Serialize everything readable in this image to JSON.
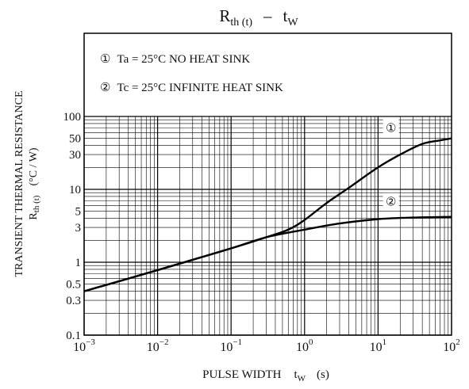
{
  "chart_data": {
    "type": "line",
    "title": {
      "main": "R",
      "sub": "th (t)",
      "dash": "–",
      "t": "t",
      "w": "W"
    },
    "ylabel": {
      "line1": "TRANSIENT THERMAL RESISTANCE",
      "line2_main": "R",
      "line2_sub": "th (t)",
      "unit": "(°C / W)"
    },
    "xlabel": {
      "text": "PULSE WIDTH",
      "t": "t",
      "w": "W",
      "unit": "(s)"
    },
    "x_scale": "log",
    "y_scale": "log",
    "xlim": [
      0.001,
      100
    ],
    "ylim": [
      0.1,
      100
    ],
    "grid": true,
    "x_tick_labels": [
      {
        "value": 0.001,
        "base": "10",
        "exp": "−3"
      },
      {
        "value": 0.01,
        "base": "10",
        "exp": "−2"
      },
      {
        "value": 0.1,
        "base": "10",
        "exp": "−1"
      },
      {
        "value": 1,
        "base": "10",
        "exp": "0"
      },
      {
        "value": 10,
        "base": "10",
        "exp": "1"
      },
      {
        "value": 100,
        "base": "10",
        "exp": "2"
      }
    ],
    "y_tick_labels": [
      {
        "value": 100,
        "label": "100"
      },
      {
        "value": 50,
        "label": "50"
      },
      {
        "value": 30,
        "label": "30"
      },
      {
        "value": 10,
        "label": "10"
      },
      {
        "value": 5,
        "label": "5"
      },
      {
        "value": 3,
        "label": "3"
      },
      {
        "value": 1,
        "label": "1"
      },
      {
        "value": 0.5,
        "label": "0.5"
      },
      {
        "value": 0.3,
        "label": "0.3"
      },
      {
        "value": 0.1,
        "label": "0.1"
      }
    ],
    "legend": [
      {
        "marker": "①",
        "text": "Ta = 25°C NO HEAT SINK"
      },
      {
        "marker": "②",
        "text": "Tc = 25°C INFINITE HEAT SINK"
      }
    ],
    "series": [
      {
        "label": "①",
        "label_at": {
          "x": 15,
          "y": 70
        },
        "x": [
          0.001,
          0.01,
          0.1,
          0.3,
          0.6,
          1,
          2,
          4,
          10,
          20,
          40,
          70,
          100
        ],
        "y": [
          0.4,
          0.78,
          1.55,
          2.2,
          2.8,
          3.8,
          6.5,
          10.5,
          20,
          30,
          42,
          47,
          50
        ]
      },
      {
        "label": "②",
        "label_at": {
          "x": 15,
          "y": 6.8
        },
        "x": [
          0.001,
          0.01,
          0.1,
          0.3,
          1,
          3,
          10,
          30,
          100
        ],
        "y": [
          0.4,
          0.78,
          1.55,
          2.2,
          2.8,
          3.4,
          3.9,
          4.1,
          4.2
        ]
      }
    ]
  }
}
